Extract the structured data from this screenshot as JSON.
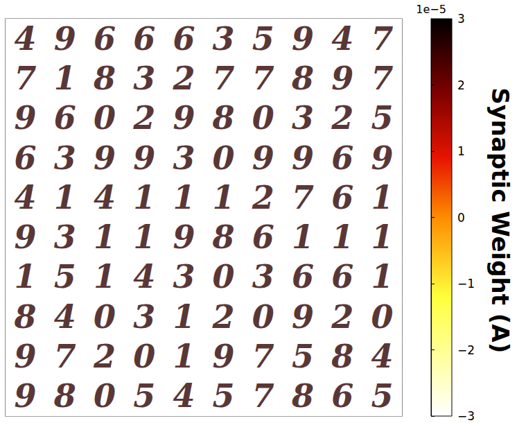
{
  "chart_data": {
    "type": "heatmap",
    "tick_labels": false,
    "tiles": [
      [
        "4",
        "9",
        "6",
        "6",
        "6",
        "3",
        "5",
        "9",
        "4",
        "7"
      ],
      [
        "7",
        "1",
        "8",
        "3",
        "2",
        "7",
        "7",
        "8",
        "9",
        "7"
      ],
      [
        "9",
        "6",
        "0",
        "2",
        "9",
        "8",
        "0",
        "3",
        "2",
        "5"
      ],
      [
        "6",
        "3",
        "9",
        "9",
        "3",
        "0",
        "9",
        "9",
        "6",
        "9"
      ],
      [
        "4",
        "1",
        "4",
        "1",
        "1",
        "1",
        "2",
        "7",
        "6",
        "1"
      ],
      [
        "9",
        "3",
        "1",
        "1",
        "9",
        "8",
        "6",
        "1",
        "1",
        "1"
      ],
      [
        "1",
        "5",
        "1",
        "4",
        "3",
        "0",
        "3",
        "6",
        "6",
        "1"
      ],
      [
        "8",
        "4",
        "0",
        "3",
        "1",
        "2",
        "0",
        "9",
        "2",
        "0"
      ],
      [
        "9",
        "7",
        "2",
        "0",
        "1",
        "9",
        "7",
        "5",
        "8",
        "4"
      ],
      [
        "9",
        "8",
        "0",
        "5",
        "4",
        "5",
        "7",
        "8",
        "6",
        "5"
      ]
    ],
    "background": -3,
    "stroke": 2.6,
    "colorbar": {
      "label": "Synaptic Weight (A)",
      "scale_label": "1e−5",
      "range": [
        -3,
        3
      ],
      "ticks": [
        {
          "value": -3,
          "label": "−3"
        },
        {
          "value": -2,
          "label": "−2"
        },
        {
          "value": -1,
          "label": "−1"
        },
        0,
        1,
        2,
        3
      ]
    }
  }
}
